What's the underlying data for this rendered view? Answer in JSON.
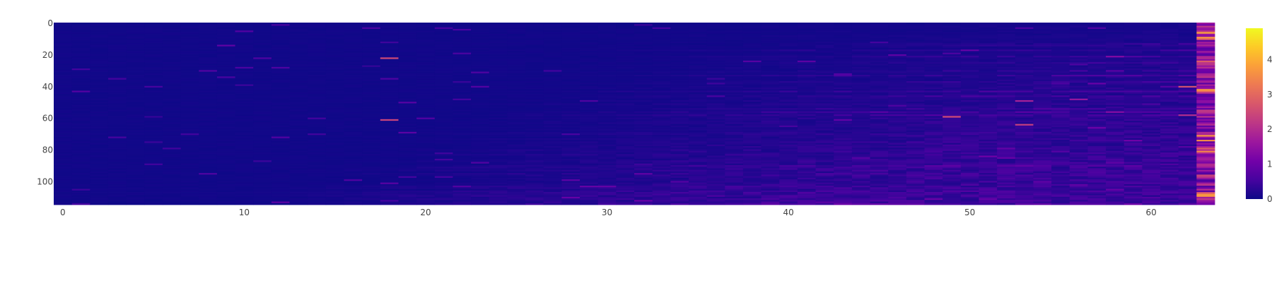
{
  "chart_data": {
    "type": "heatmap",
    "title": "",
    "xlabel": "",
    "ylabel": "",
    "x_range": [
      -0.5,
      63.5
    ],
    "y_range": [
      -0.5,
      114.5
    ],
    "y_reversed": true,
    "x_ticks": [
      0,
      10,
      20,
      30,
      40,
      50,
      60
    ],
    "y_ticks": [
      0,
      20,
      40,
      60,
      80,
      100
    ],
    "n_cols": 64,
    "n_rows": 115,
    "colorbar": {
      "min": 0,
      "max": 4.9,
      "ticks": [
        0,
        1,
        2,
        3,
        4
      ]
    },
    "colorscale": [
      "#0d0887",
      "#46039f",
      "#7201a8",
      "#9c179e",
      "#bd3786",
      "#d8576b",
      "#ed7953",
      "#fb9f3a",
      "#fdca26",
      "#f0f921"
    ],
    "grid": false,
    "notable_cells": [
      {
        "row": 22,
        "col": 18,
        "value": 2.5
      },
      {
        "row": 61,
        "col": 18,
        "value": 2.4
      },
      {
        "row": 59,
        "col": 49,
        "value": 2.5
      },
      {
        "row": 64,
        "col": 53,
        "value": 2.3
      },
      {
        "row": 49,
        "col": 53,
        "value": 1.8
      },
      {
        "row": 48,
        "col": 56,
        "value": 1.6
      },
      {
        "row": 40,
        "col": 62,
        "value": 2.6
      },
      {
        "row": 58,
        "col": 62,
        "value": 2.0
      },
      {
        "row": 74,
        "col": 63,
        "value": 3.5
      },
      {
        "row": 108,
        "col": 63,
        "value": 3.6
      }
    ]
  }
}
